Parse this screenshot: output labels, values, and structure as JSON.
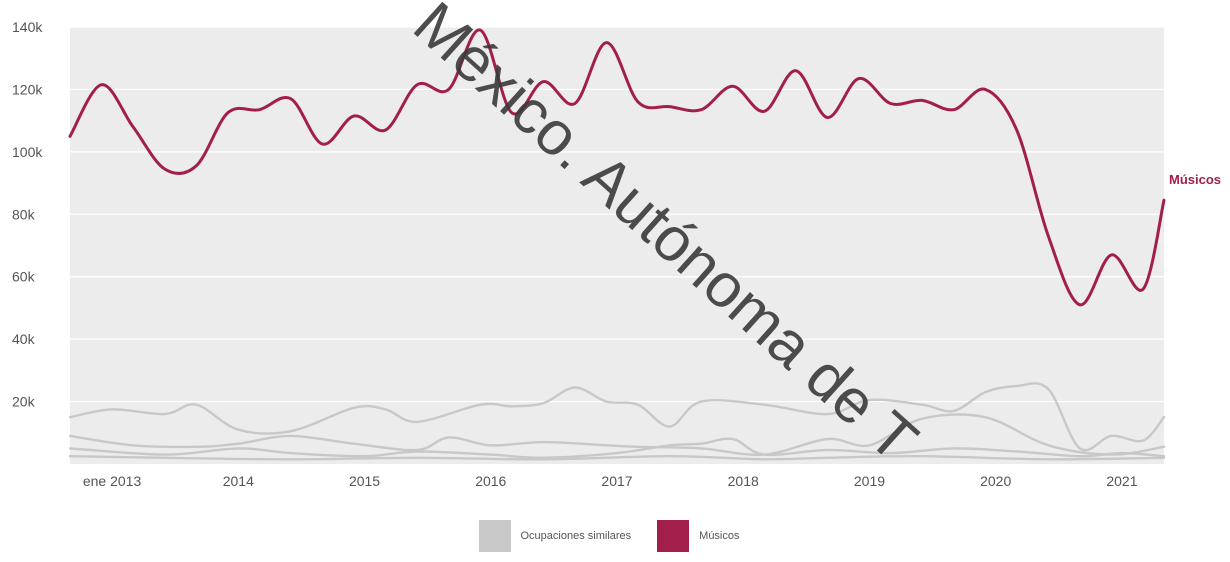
{
  "colors": {
    "musicos": "#a31f4b",
    "similares": "#c8c8c8",
    "plot_bg": "#ececec",
    "grid": "#ffffff",
    "tick_text": "#555555",
    "watermark": "#3a3a3a"
  },
  "watermark": {
    "text": "México. Autónoma de T"
  },
  "legend": {
    "items": [
      {
        "label": "Ocupaciones similares",
        "color": "#c8c8c8"
      },
      {
        "label": "Músicos",
        "color": "#a31f4b"
      }
    ]
  },
  "chart_data": {
    "type": "line",
    "x_unit": "month",
    "x_range": [
      "2012-09",
      "2021-05"
    ],
    "ylim": [
      0,
      140000
    ],
    "grid": true,
    "legend_position": "bottom-center",
    "x_ticks": [
      {
        "x": "2013-01",
        "label": "ene 2013"
      },
      {
        "x": "2014-01",
        "label": "2014"
      },
      {
        "x": "2015-01",
        "label": "2015"
      },
      {
        "x": "2016-01",
        "label": "2016"
      },
      {
        "x": "2017-01",
        "label": "2017"
      },
      {
        "x": "2018-01",
        "label": "2018"
      },
      {
        "x": "2019-01",
        "label": "2019"
      },
      {
        "x": "2020-01",
        "label": "2020"
      },
      {
        "x": "2021-01",
        "label": "2021"
      }
    ],
    "y_ticks": [
      {
        "y": 20000,
        "label": "20k"
      },
      {
        "y": 40000,
        "label": "40k"
      },
      {
        "y": 60000,
        "label": "60k"
      },
      {
        "y": 80000,
        "label": "80k"
      },
      {
        "y": 100000,
        "label": "100k"
      },
      {
        "y": 120000,
        "label": "120k"
      },
      {
        "y": 140000,
        "label": "140k"
      }
    ],
    "series": [
      {
        "name": "Músicos",
        "end_label": "Músicos",
        "color": "#a31f4b",
        "highlight": true,
        "points": [
          [
            "2012-09",
            105000
          ],
          [
            "2012-12",
            121500
          ],
          [
            "2013-03",
            108000
          ],
          [
            "2013-06",
            94500
          ],
          [
            "2013-09",
            95500
          ],
          [
            "2013-12",
            112500
          ],
          [
            "2014-03",
            113500
          ],
          [
            "2014-06",
            117000
          ],
          [
            "2014-09",
            102500
          ],
          [
            "2014-12",
            111500
          ],
          [
            "2015-03",
            107000
          ],
          [
            "2015-06",
            121500
          ],
          [
            "2015-09",
            120000
          ],
          [
            "2015-12",
            139000
          ],
          [
            "2016-03",
            112500
          ],
          [
            "2016-06",
            122500
          ],
          [
            "2016-09",
            115500
          ],
          [
            "2016-12",
            135000
          ],
          [
            "2017-03",
            116000
          ],
          [
            "2017-06",
            114500
          ],
          [
            "2017-09",
            113500
          ],
          [
            "2017-12",
            121000
          ],
          [
            "2018-03",
            113000
          ],
          [
            "2018-06",
            126000
          ],
          [
            "2018-09",
            111000
          ],
          [
            "2018-12",
            123500
          ],
          [
            "2019-03",
            115500
          ],
          [
            "2019-06",
            116500
          ],
          [
            "2019-09",
            113500
          ],
          [
            "2019-12",
            120000
          ],
          [
            "2020-03",
            107000
          ],
          [
            "2020-06",
            73000
          ],
          [
            "2020-09",
            51000
          ],
          [
            "2020-12",
            67000
          ],
          [
            "2021-03",
            56000
          ],
          [
            "2021-05",
            84500
          ]
        ]
      },
      {
        "name": "",
        "color": "#c8c8c8",
        "highlight": false,
        "points": [
          [
            "2012-09",
            15000
          ],
          [
            "2013-01",
            17500
          ],
          [
            "2013-06",
            16000
          ],
          [
            "2013-09",
            19000
          ],
          [
            "2014-01",
            11000
          ],
          [
            "2014-06",
            10500
          ],
          [
            "2014-12",
            18000
          ],
          [
            "2015-03",
            17500
          ],
          [
            "2015-06",
            13500
          ],
          [
            "2015-12",
            19000
          ],
          [
            "2016-03",
            18500
          ],
          [
            "2016-06",
            19500
          ],
          [
            "2016-09",
            24500
          ],
          [
            "2016-12",
            20000
          ],
          [
            "2017-03",
            19000
          ],
          [
            "2017-06",
            12000
          ],
          [
            "2017-09",
            20000
          ],
          [
            "2018-03",
            19000
          ],
          [
            "2018-09",
            16000
          ],
          [
            "2019-01",
            20500
          ],
          [
            "2019-06",
            19000
          ],
          [
            "2019-09",
            17000
          ],
          [
            "2019-12",
            23000
          ],
          [
            "2020-03",
            25000
          ],
          [
            "2020-06",
            24000
          ],
          [
            "2020-09",
            5000
          ],
          [
            "2020-12",
            9000
          ],
          [
            "2021-03",
            7500
          ],
          [
            "2021-05",
            15000
          ]
        ]
      },
      {
        "name": "",
        "color": "#c8c8c8",
        "highlight": false,
        "points": [
          [
            "2012-09",
            9000
          ],
          [
            "2013-03",
            6000
          ],
          [
            "2013-09",
            5500
          ],
          [
            "2014-01",
            6500
          ],
          [
            "2014-06",
            9000
          ],
          [
            "2014-12",
            6500
          ],
          [
            "2015-06",
            4500
          ],
          [
            "2015-09",
            8500
          ],
          [
            "2016-01",
            6000
          ],
          [
            "2016-06",
            7000
          ],
          [
            "2016-12",
            6000
          ],
          [
            "2017-03",
            5500
          ],
          [
            "2017-09",
            5000
          ],
          [
            "2018-03",
            3000
          ],
          [
            "2018-09",
            8000
          ],
          [
            "2019-01",
            6000
          ],
          [
            "2019-06",
            14500
          ],
          [
            "2019-12",
            15000
          ],
          [
            "2020-06",
            6000
          ],
          [
            "2020-12",
            3000
          ],
          [
            "2021-05",
            5500
          ]
        ]
      },
      {
        "name": "",
        "color": "#c8c8c8",
        "highlight": false,
        "points": [
          [
            "2012-09",
            5000
          ],
          [
            "2013-06",
            3000
          ],
          [
            "2014-01",
            5000
          ],
          [
            "2014-06",
            3500
          ],
          [
            "2015-01",
            2500
          ],
          [
            "2015-06",
            4000
          ],
          [
            "2016-01",
            3000
          ],
          [
            "2016-06",
            2000
          ],
          [
            "2017-01",
            3500
          ],
          [
            "2017-06",
            6000
          ],
          [
            "2017-09",
            6500
          ],
          [
            "2017-12",
            8000
          ],
          [
            "2018-03",
            3000
          ],
          [
            "2018-09",
            4500
          ],
          [
            "2019-03",
            3500
          ],
          [
            "2019-09",
            5000
          ],
          [
            "2020-03",
            4000
          ],
          [
            "2020-09",
            2500
          ],
          [
            "2021-01",
            3500
          ],
          [
            "2021-05",
            2500
          ]
        ]
      },
      {
        "name": "",
        "color": "#c8c8c8",
        "highlight": false,
        "points": [
          [
            "2012-09",
            2500
          ],
          [
            "2013-06",
            2000
          ],
          [
            "2014-06",
            1500
          ],
          [
            "2015-06",
            2000
          ],
          [
            "2016-06",
            1500
          ],
          [
            "2017-06",
            2500
          ],
          [
            "2018-03",
            1500
          ],
          [
            "2018-09",
            2000
          ],
          [
            "2019-06",
            2500
          ],
          [
            "2020-06",
            1500
          ],
          [
            "2021-05",
            2000
          ]
        ]
      }
    ]
  }
}
